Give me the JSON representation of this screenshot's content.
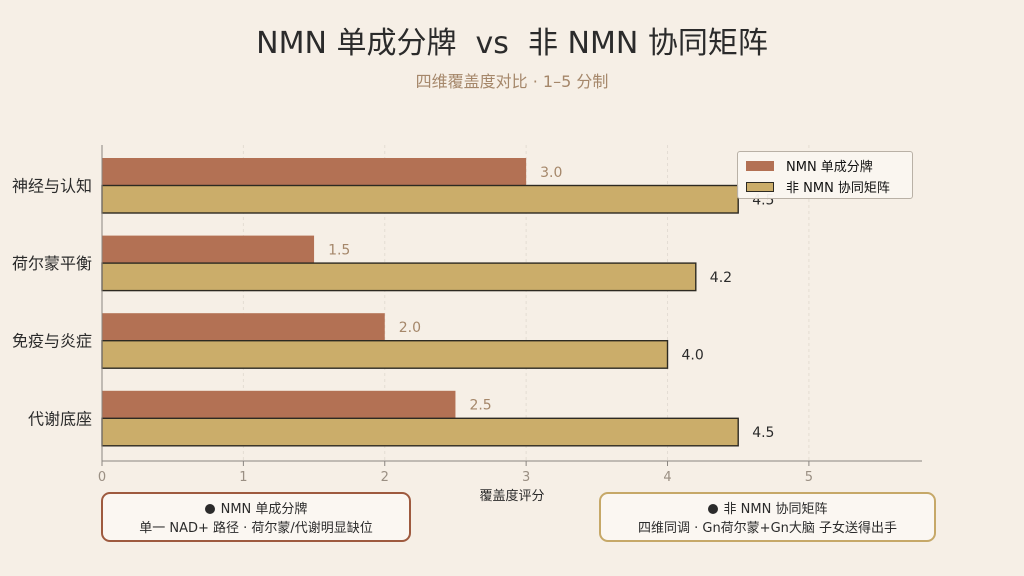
{
  "header": {
    "title": "NMN 单成分牌  vs  非 NMN 协同矩阵",
    "subtitle": "四维覆盖度对比 · 1–5 分制"
  },
  "colors": {
    "single": "#b37154",
    "matrix": "#cbad6a",
    "matrix_edge": "#2d2a22",
    "axis": "#8a8580",
    "grid": "#e4ddd3",
    "tick_text": "#9a8f83",
    "single_label": "#a5876a",
    "note_single_border": "#9e5a3f",
    "note_matrix_border": "#c6a868"
  },
  "chart_data": {
    "type": "bar",
    "orientation": "horizontal",
    "categories": [
      "神经与认知",
      "荷尔蒙平衡",
      "免疫与炎症",
      "代谢底座"
    ],
    "series": [
      {
        "name": "NMN 单成分牌",
        "values": [
          3.0,
          1.5,
          2.0,
          2.5
        ]
      },
      {
        "name": "非 NMN 协同矩阵",
        "values": [
          4.5,
          4.2,
          4.0,
          4.5
        ]
      }
    ],
    "value_labels": [
      [
        "3.0",
        "1.5",
        "2.0",
        "2.5"
      ],
      [
        "4.5",
        "4.2",
        "4.0",
        "4.5"
      ]
    ],
    "xlabel": "覆盖度评分",
    "xlim": [
      0,
      5.8
    ],
    "xticks": [
      0,
      1,
      2,
      3,
      4,
      5
    ],
    "grid": true,
    "legend_position": "top-right"
  },
  "notes": {
    "single": {
      "title": "NMN 单成分牌",
      "text": "单一 NAD+ 路径 · 荷尔蒙/代谢明显缺位"
    },
    "matrix": {
      "title": "非 NMN 协同矩阵",
      "text": "四维同调 · Gn荷尔蒙+Gn大脑 子女送得出手"
    }
  }
}
